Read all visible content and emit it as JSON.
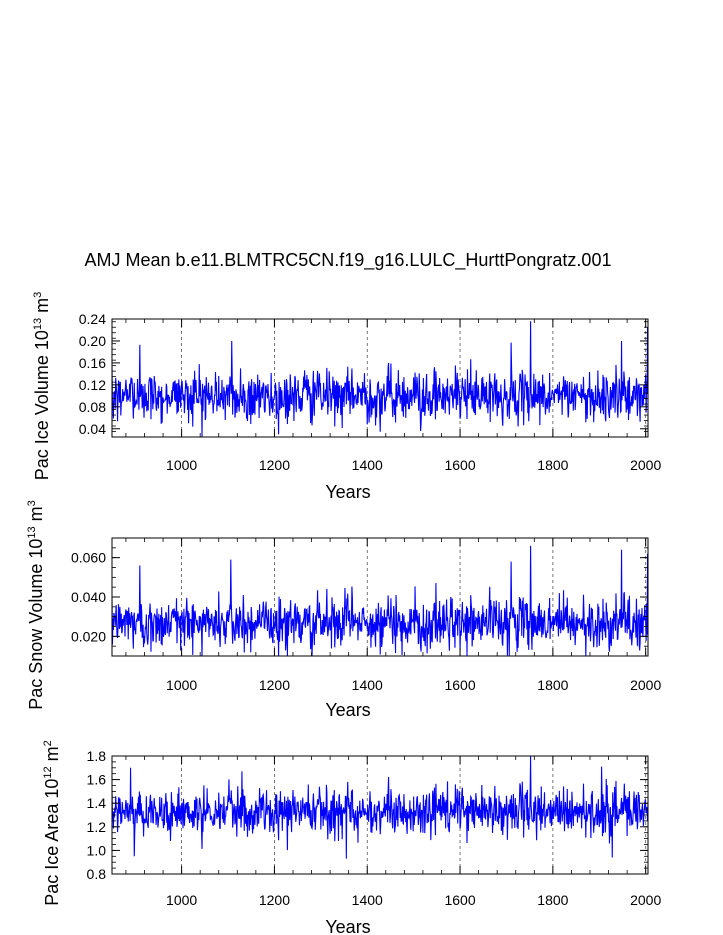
{
  "title": "AMJ Mean b.e11.BLMTRC5CN.f19_g16.LULC_HurttPongratz.001",
  "colors": {
    "series": "#0000ff",
    "axis": "#000000",
    "grid": "#555555"
  },
  "chart_data": [
    {
      "type": "line",
      "title": "AMJ Mean b.e11.BLMTRC5CN.f19_g16.LULC_HurttPongratz.001",
      "xlabel": "Years",
      "ylabel": {
        "prefix": "Pac Ice Volume 10",
        "exp": "13",
        "unit": " m",
        "unit_exp": "3"
      },
      "xlim": [
        850,
        2005
      ],
      "ylim": [
        0.025,
        0.24
      ],
      "xticks": [
        1000,
        1200,
        1400,
        1600,
        1800,
        2000
      ],
      "xtick_labels": [
        "1000",
        "1200",
        "1400",
        "1600",
        "1800",
        "2000"
      ],
      "yticks": [
        0.04,
        0.08,
        0.12,
        0.16,
        0.2,
        0.24
      ],
      "ytick_labels": [
        "0.04",
        "0.08",
        "0.12",
        "0.16",
        "0.20",
        "0.24"
      ],
      "grid": "dashed vertical lines at major x ticks",
      "series": [
        {
          "color": "#0000ff",
          "mean": 0.1,
          "sd": 0.026,
          "years": [
            850,
            2005
          ],
          "peaks": [
            [
              1752,
              0.236
            ],
            [
              2004,
              0.225
            ],
            [
              1710,
              0.197
            ],
            [
              1108,
              0.2
            ],
            [
              1948,
              0.2
            ],
            [
              910,
              0.193
            ]
          ]
        }
      ]
    },
    {
      "type": "line",
      "xlabel": "Years",
      "ylabel": {
        "prefix": "Pac Snow Volume 10",
        "exp": "13",
        "unit": " m",
        "unit_exp": "3"
      },
      "xlim": [
        850,
        2005
      ],
      "ylim": [
        0.01,
        0.07
      ],
      "xticks": [
        1000,
        1200,
        1400,
        1600,
        1800,
        2000
      ],
      "xtick_labels": [
        "1000",
        "1200",
        "1400",
        "1600",
        "1800",
        "2000"
      ],
      "yticks": [
        0.02,
        0.04,
        0.06
      ],
      "ytick_labels": [
        "0.020",
        "0.040",
        "0.060"
      ],
      "grid": "dashed vertical lines at major x ticks",
      "series": [
        {
          "color": "#0000ff",
          "mean": 0.027,
          "sd": 0.0075,
          "years": [
            850,
            2005
          ],
          "peaks": [
            [
              1752,
              0.066
            ],
            [
              1948,
              0.064
            ],
            [
              2004,
              0.062
            ],
            [
              1106,
              0.059
            ],
            [
              1710,
              0.058
            ],
            [
              910,
              0.056
            ]
          ]
        }
      ]
    },
    {
      "type": "line",
      "xlabel": "Years",
      "ylabel": {
        "prefix": "Pac Ice Area 10",
        "exp": "12",
        "unit": " m",
        "unit_exp": "2"
      },
      "xlim": [
        850,
        2005
      ],
      "ylim": [
        0.8,
        1.8
      ],
      "xticks": [
        1000,
        1200,
        1400,
        1600,
        1800,
        2000
      ],
      "xtick_labels": [
        "1000",
        "1200",
        "1400",
        "1600",
        "1800",
        "2000"
      ],
      "yticks": [
        0.8,
        1.0,
        1.2,
        1.4,
        1.6,
        1.8
      ],
      "ytick_labels": [
        "0.8",
        "1.0",
        "1.2",
        "1.4",
        "1.6",
        "1.8"
      ],
      "grid": "dashed vertical lines at major x ticks",
      "series": [
        {
          "color": "#0000ff",
          "mean": 1.33,
          "sd": 0.12,
          "years": [
            850,
            2005
          ],
          "peaks": [
            [
              1752,
              1.8
            ],
            [
              1905,
              1.71
            ],
            [
              890,
              1.7
            ],
            [
              1130,
              1.67
            ],
            [
              1355,
              0.93
            ],
            [
              1928,
              0.94
            ],
            [
              898,
              0.95
            ]
          ]
        }
      ]
    }
  ]
}
